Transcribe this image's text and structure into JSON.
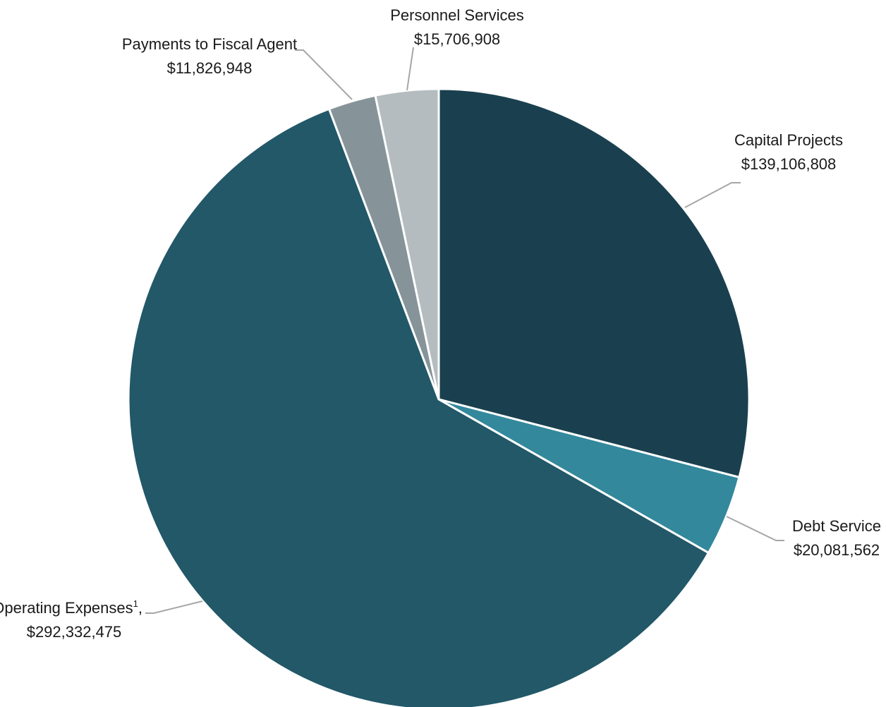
{
  "chart_data": {
    "type": "pie",
    "title": "",
    "start_angle_deg": 0,
    "direction": "clockwise",
    "slices": [
      {
        "name": "Capital Projects",
        "value_label": "$139,106,808",
        "value": 139106808,
        "color": "#1a404f"
      },
      {
        "name": "Debt Service",
        "value_label": "$20,081,562",
        "value": 20081562,
        "color": "#33889c"
      },
      {
        "name": "Operating Expenses",
        "name_suffix": ",",
        "footnote": "1",
        "value_label": "$292,332,475",
        "value": 292332475,
        "color": "#225868"
      },
      {
        "name": "Payments to Fiscal Agent",
        "value_label": "$11,826,948",
        "value": 11826948,
        "color": "#869499"
      },
      {
        "name": "Personnel Services",
        "value_label": "$15,706,908",
        "value": 15706908,
        "color": "#b5bcc0"
      }
    ]
  }
}
